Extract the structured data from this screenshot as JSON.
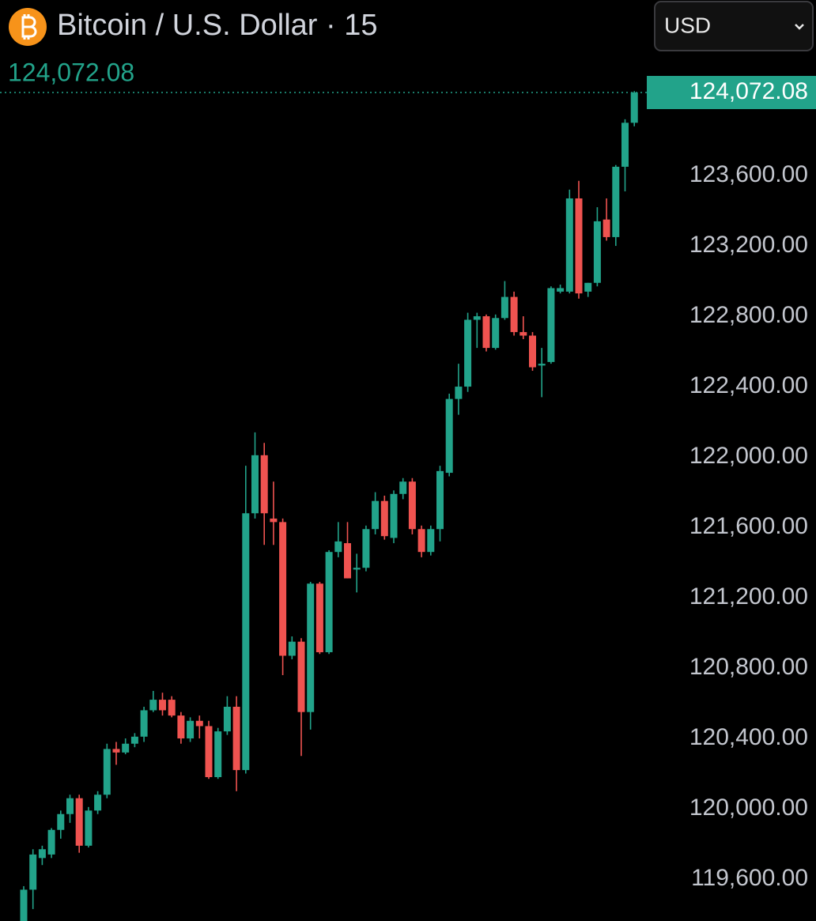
{
  "chart_data": {
    "type": "candlestick",
    "title": "Bitcoin / U.S. Dollar · 15",
    "currency": "USD",
    "up_color": "#22a38a",
    "down_color": "#ef5350",
    "last_price": {
      "value": 124072.08,
      "label": "124,072.08"
    },
    "ylim": [
      119362,
      124598
    ],
    "yticks": [
      {
        "value": 119600,
        "label": "119,600.00"
      },
      {
        "value": 120000,
        "label": "120,000.00"
      },
      {
        "value": 120400,
        "label": "120,400.00"
      },
      {
        "value": 120800,
        "label": "120,800.00"
      },
      {
        "value": 121200,
        "label": "121,200.00"
      },
      {
        "value": 121600,
        "label": "121,600.00"
      },
      {
        "value": 122000,
        "label": "122,000.00"
      },
      {
        "value": 122400,
        "label": "122,400.00"
      },
      {
        "value": 122800,
        "label": "122,800.00"
      },
      {
        "value": 123200,
        "label": "123,200.00"
      },
      {
        "value": 123600,
        "label": "123,600.00"
      }
    ],
    "open": [
      119360,
      119540,
      119720,
      119740,
      119880,
      119970,
      120060,
      119790,
      119990,
      120080,
      120340,
      120320,
      120370,
      120410,
      120560,
      120620,
      120620,
      120530,
      120400,
      120500,
      120470,
      120180,
      120440,
      120580,
      120220,
      121680,
      122010,
      121650,
      121630,
      120870,
      120950,
      120550,
      121280,
      120890,
      121460,
      121510,
      121360,
      121370,
      121590,
      121750,
      121540,
      121790,
      121860,
      121590,
      121460,
      121590,
      121910,
      122330,
      122400,
      122780,
      122800,
      122620,
      122790,
      122910,
      122710,
      122690,
      122520,
      122540,
      122940,
      122940,
      123470,
      122940,
      122990,
      123350,
      123250,
      123650,
      123900
    ],
    "high": [
      119560,
      119770,
      119790,
      119890,
      119990,
      120080,
      120080,
      120010,
      120100,
      120370,
      120380,
      120400,
      120430,
      120580,
      120670,
      120660,
      120640,
      120550,
      120520,
      120530,
      120500,
      120460,
      120640,
      120640,
      121950,
      122140,
      122080,
      121860,
      121650,
      120980,
      120970,
      121290,
      121290,
      121470,
      121630,
      121630,
      121450,
      121610,
      121800,
      121780,
      121810,
      121880,
      121880,
      121610,
      121610,
      121950,
      122360,
      122530,
      122820,
      122820,
      122810,
      122810,
      123000,
      122940,
      122800,
      122710,
      122620,
      122970,
      122980,
      123520,
      123570,
      122990,
      123420,
      123470,
      123660,
      123920,
      124080
    ],
    "low": [
      119360,
      119430,
      119680,
      119720,
      119830,
      119920,
      119750,
      119780,
      119970,
      120060,
      120250,
      120310,
      120350,
      120380,
      120550,
      120530,
      120520,
      120370,
      120380,
      120400,
      120170,
      120170,
      120420,
      120100,
      120200,
      121650,
      121500,
      121500,
      120760,
      120850,
      120300,
      120450,
      120880,
      120880,
      121430,
      121310,
      121230,
      121350,
      121560,
      121530,
      121510,
      121760,
      121560,
      121430,
      121440,
      121520,
      121890,
      122240,
      122370,
      122620,
      122600,
      122610,
      122780,
      122690,
      122670,
      122490,
      122340,
      122530,
      122930,
      122930,
      122900,
      122910,
      122970,
      123230,
      123200,
      123510,
      123880
    ],
    "close": [
      119540,
      119740,
      119770,
      119880,
      119970,
      120060,
      119790,
      119990,
      120080,
      120340,
      120320,
      120370,
      120410,
      120560,
      120620,
      120560,
      120530,
      120400,
      120500,
      120470,
      120180,
      120440,
      120580,
      120220,
      121680,
      122010,
      121680,
      121630,
      120870,
      120950,
      120550,
      121280,
      120890,
      121460,
      121520,
      121310,
      121370,
      121590,
      121750,
      121550,
      121790,
      121860,
      121590,
      121460,
      121590,
      121920,
      122330,
      122400,
      122780,
      122800,
      122620,
      122790,
      122910,
      122710,
      122690,
      122510,
      122530,
      122960,
      122960,
      123470,
      122930,
      122990,
      123340,
      123250,
      123650,
      123900,
      124072.08
    ]
  }
}
